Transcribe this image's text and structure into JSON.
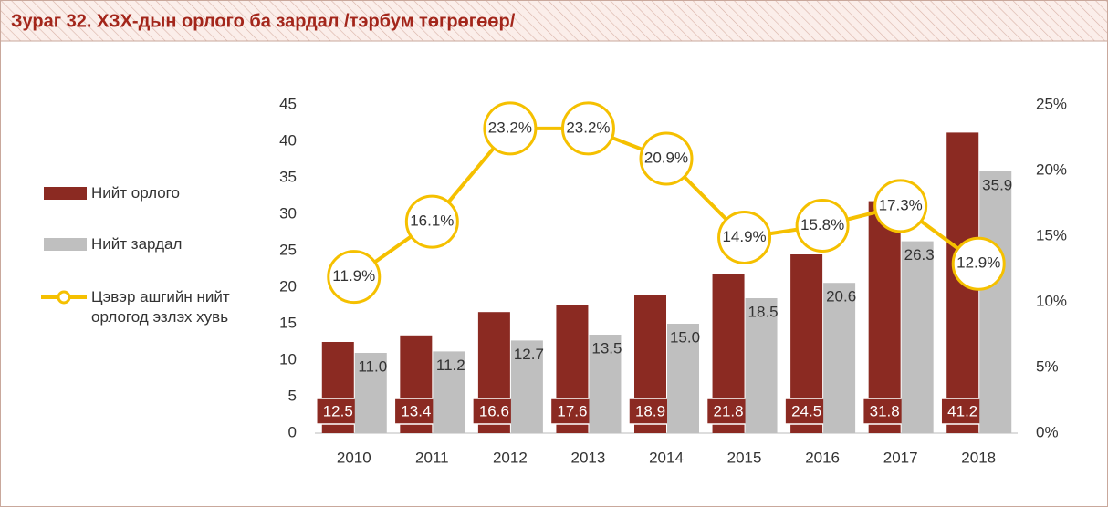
{
  "chart_data": {
    "type": "bar_line",
    "title": "Зураг 32. ХЗХ-дын орлого ба зардал /тэрбум төгрөгөөр/",
    "categories": [
      "2010",
      "2011",
      "2012",
      "2013",
      "2014",
      "2015",
      "2016",
      "2017",
      "2018"
    ],
    "series": [
      {
        "name": "Нийт орлого",
        "type": "bar",
        "color": "#8b2a22",
        "values": [
          12.5,
          13.4,
          16.6,
          17.6,
          18.9,
          21.8,
          24.5,
          31.8,
          41.2
        ]
      },
      {
        "name": "Нийт зардал",
        "type": "bar",
        "color": "#bfbfbf",
        "values": [
          11.0,
          11.2,
          12.7,
          13.5,
          15.0,
          18.5,
          20.6,
          26.3,
          35.9
        ],
        "value_labels": [
          "11.0",
          "11.2",
          "12.7",
          "13.5",
          "15.0",
          "18.5",
          "20.6",
          "26.3",
          "35.9"
        ]
      },
      {
        "name": "Цэвэр ашгийн нийт орлогод эзлэх хувь",
        "type": "line",
        "axis": "y2",
        "color": "#f5c000",
        "values": [
          11.9,
          16.1,
          23.2,
          23.2,
          20.9,
          14.9,
          15.8,
          17.3,
          12.9
        ],
        "value_labels": [
          "11.9%",
          "16.1%",
          "23.2%",
          "23.2%",
          "20.9%",
          "14.9%",
          "15.8%",
          "17.3%",
          "12.9%"
        ]
      }
    ],
    "ylim": [
      0,
      45
    ],
    "yticks": [
      0,
      5,
      10,
      15,
      20,
      25,
      30,
      35,
      40,
      45
    ],
    "y2lim": [
      0,
      25
    ],
    "y2ticks": [
      {
        "value": 0,
        "label": "0%"
      },
      {
        "value": 5,
        "label": "5%"
      },
      {
        "value": 10,
        "label": "10%"
      },
      {
        "value": 15,
        "label": "15%"
      },
      {
        "value": 20,
        "label": "20%"
      },
      {
        "value": 25,
        "label": "25%"
      }
    ],
    "legend": "left"
  }
}
